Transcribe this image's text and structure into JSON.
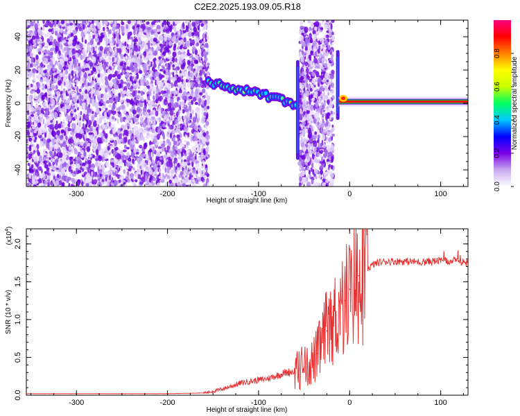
{
  "title": "C2E2.2025.193.09.05.R18",
  "chart_data": [
    {
      "type": "heatmap",
      "xlabel": "Height of straight line (km)",
      "ylabel": "Frequency (Hz)",
      "xlim": [
        -355,
        130
      ],
      "ylim": [
        -50,
        50
      ],
      "xticks": [
        -300,
        -200,
        -100,
        0,
        100
      ],
      "yticks": [
        -40,
        -20,
        0,
        20,
        40
      ],
      "noise_region_x": [
        -355,
        -155
      ],
      "second_noise_band_x": [
        -55,
        -18
      ],
      "signal_ridge": [
        {
          "x": -155,
          "y": 13
        },
        {
          "x": -140,
          "y": 11
        },
        {
          "x": -125,
          "y": 8
        },
        {
          "x": -110,
          "y": 7
        },
        {
          "x": -95,
          "y": 5
        },
        {
          "x": -80,
          "y": 3
        },
        {
          "x": -65,
          "y": 0
        },
        {
          "x": -55,
          "y": -2
        },
        {
          "x": -12,
          "y": 2
        },
        {
          "x": 0,
          "y": 1
        },
        {
          "x": 50,
          "y": 1
        },
        {
          "x": 130,
          "y": 1
        }
      ],
      "colorbar": {
        "label": "Normalized spectral amplitude",
        "range": [
          0,
          1
        ],
        "ticks": [
          "0.0",
          "0.2",
          "0.4",
          "0.6",
          "0.8"
        ],
        "colors": [
          "#ffffff",
          "#c8a8f0",
          "#7b00e6",
          "#0000ff",
          "#00c8ff",
          "#00ff60",
          "#c8ff00",
          "#ffff00",
          "#ff8000",
          "#ff0000",
          "#ff0080"
        ]
      }
    },
    {
      "type": "line",
      "xlabel": "Height of straight line (km)",
      "ylabel": "SNR (10 * v/v)",
      "yscale_label": "(x10",
      "yscale_exp": "4",
      "yscale_suffix": ")",
      "xlim": [
        -355,
        130
      ],
      "ylim": [
        0,
        2.2
      ],
      "xticks": [
        -300,
        -200,
        -100,
        0,
        100
      ],
      "yticks": [
        0.0,
        0.5,
        1.0,
        1.5,
        2.0
      ],
      "series": [
        {
          "color": "#e83030",
          "x": [
            -355,
            -300,
            -250,
            -200,
            -160,
            -150,
            -140,
            -130,
            -120,
            -110,
            -100,
            -90,
            -80,
            -70,
            -60,
            -50,
            -40,
            -35,
            -30,
            -25,
            -20,
            -15,
            -10,
            -5,
            0,
            5,
            10,
            20,
            30,
            40,
            60,
            80,
            100,
            110,
            120,
            130
          ],
          "y": [
            0.02,
            0.02,
            0.02,
            0.02,
            0.03,
            0.05,
            0.08,
            0.12,
            0.16,
            0.18,
            0.2,
            0.22,
            0.26,
            0.3,
            0.32,
            0.36,
            0.45,
            0.55,
            0.7,
            0.85,
            0.95,
            1.05,
            1.15,
            1.25,
            1.4,
            1.5,
            1.58,
            1.68,
            1.75,
            1.77,
            1.77,
            1.76,
            1.78,
            1.77,
            1.78,
            1.74
          ]
        }
      ]
    }
  ]
}
